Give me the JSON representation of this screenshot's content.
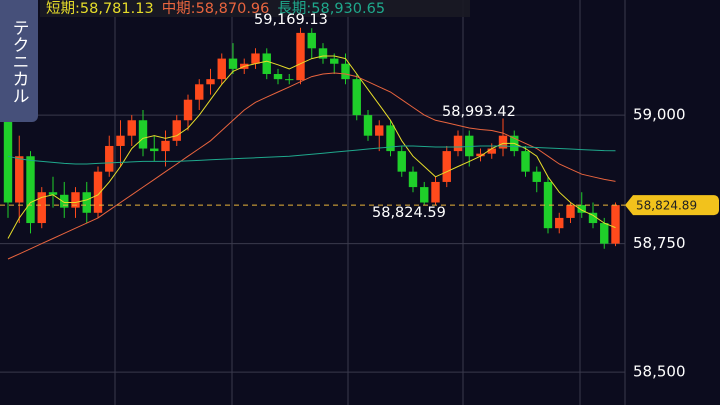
{
  "chart_data": {
    "type": "candlestick",
    "side_tab": "テクニカル",
    "ylim": [
      58436,
      59224
    ],
    "yticks": [
      {
        "value": 59000,
        "label": "59,000"
      },
      {
        "value": 58750,
        "label": "58,750"
      },
      {
        "value": 58500,
        "label": "58,500"
      }
    ],
    "grid": true,
    "up_color": "#ff4a1c",
    "down_color": "#1fcf2a",
    "current_price": {
      "value": 58824.89,
      "label": "58,824.89"
    },
    "annotations": [
      "59,169.13",
      "58,993.42",
      "58,824.59"
    ],
    "candles": {
      "open": [
        58990,
        58830,
        58920,
        58790,
        58850,
        58845,
        58820,
        58850,
        58810,
        58890,
        58940,
        58960,
        58990,
        58935,
        58930,
        58950,
        58990,
        59030,
        59060,
        59070,
        59110,
        59090,
        59100,
        59120,
        59080,
        59070,
        59068,
        59160,
        59130,
        59110,
        59100,
        59070,
        59000,
        58960,
        58980,
        58930,
        58890,
        58860,
        58830,
        58870,
        58930,
        58960,
        58920,
        58925,
        58935,
        58960,
        58930,
        58890,
        58870,
        58780,
        58800,
        58825,
        58810,
        58790,
        58750
      ],
      "high": [
        59005,
        58960,
        58930,
        58860,
        58880,
        58870,
        58860,
        58870,
        58900,
        58960,
        58990,
        59000,
        59010,
        58960,
        58970,
        59000,
        59040,
        59070,
        59090,
        59120,
        59140,
        59110,
        59130,
        59130,
        59090,
        59080,
        59170,
        59169.13,
        59140,
        59120,
        59120,
        59080,
        59010,
        58990,
        58990,
        58940,
        58900,
        58870,
        58880,
        58940,
        58970,
        58970,
        58935,
        58945,
        58993.42,
        58970,
        58940,
        58900,
        58880,
        58810,
        58830,
        58850,
        58830,
        58800,
        58830
      ],
      "low": [
        58800,
        58790,
        58770,
        58780,
        58820,
        58800,
        58800,
        58790,
        58800,
        58880,
        58900,
        58940,
        58920,
        58910,
        58900,
        58940,
        58970,
        59010,
        59040,
        59060,
        59080,
        59080,
        59090,
        59070,
        59060,
        59060,
        59060,
        59110,
        59100,
        59080,
        59060,
        58990,
        58950,
        58930,
        58920,
        58880,
        58850,
        58824.59,
        58825,
        58860,
        58920,
        58900,
        58910,
        58915,
        58920,
        58920,
        58880,
        58850,
        58770,
        58770,
        58790,
        58800,
        58780,
        58740,
        58745
      ],
      "close": [
        58830,
        58920,
        58790,
        58850,
        58845,
        58820,
        58850,
        58810,
        58890,
        58940,
        58960,
        58990,
        58935,
        58930,
        58950,
        58990,
        59030,
        59060,
        59070,
        59110,
        59090,
        59100,
        59120,
        59080,
        59070,
        59068,
        59160,
        59130,
        59110,
        59100,
        59070,
        59000,
        58960,
        58980,
        58930,
        58890,
        58860,
        58830,
        58870,
        58930,
        58960,
        58920,
        58925,
        58935,
        58960,
        58930,
        58890,
        58870,
        58780,
        58800,
        58825,
        58810,
        58790,
        58750,
        58824.89
      ]
    },
    "series": [
      {
        "name": "短期:",
        "color": "#e6dc2a",
        "last_label": "58,781.13",
        "values": [
          58760,
          58800,
          58830,
          58840,
          58845,
          58830,
          58830,
          58835,
          58845,
          58870,
          58900,
          58935,
          58955,
          58960,
          58955,
          58960,
          58975,
          59000,
          59030,
          59060,
          59085,
          59095,
          59100,
          59105,
          59098,
          59090,
          59100,
          59110,
          59115,
          59115,
          59110,
          59080,
          59050,
          59020,
          58990,
          58950,
          58920,
          58900,
          58880,
          58890,
          58900,
          58910,
          58920,
          58935,
          58945,
          58945,
          58935,
          58920,
          58880,
          58850,
          58830,
          58815,
          58805,
          58790,
          58781.13
        ]
      },
      {
        "name": "中期:",
        "color": "#e8643e",
        "last_label": "58,870.96",
        "values": [
          58720,
          58730,
          58740,
          58750,
          58760,
          58770,
          58780,
          58790,
          58800,
          58815,
          58830,
          58845,
          58860,
          58875,
          58890,
          58905,
          58920,
          58935,
          58950,
          58970,
          58990,
          59010,
          59025,
          59035,
          59045,
          59055,
          59065,
          59075,
          59080,
          59082,
          59080,
          59075,
          59065,
          59055,
          59045,
          59030,
          59015,
          59000,
          58990,
          58985,
          58980,
          58975,
          58972,
          58970,
          58965,
          58955,
          58945,
          58935,
          58920,
          58905,
          58895,
          58885,
          58880,
          58875,
          58870.96
        ]
      },
      {
        "name": "長期:",
        "color": "#1fa88c",
        "last_label": "58,930.65",
        "values": [
          58920,
          58915,
          58912,
          58910,
          58908,
          58906,
          58905,
          58905,
          58906,
          58907,
          58908,
          58909,
          58910,
          58910,
          58910,
          58910,
          58911,
          58912,
          58913,
          58914,
          58915,
          58916,
          58917,
          58918,
          58919,
          58920,
          58922,
          58924,
          58926,
          58928,
          58930,
          58932,
          58934,
          58936,
          58938,
          58940,
          58940,
          58939,
          58938,
          58938,
          58938,
          58939,
          58940,
          58940,
          58940,
          58939,
          58938,
          58937,
          58936,
          58935,
          58934,
          58933,
          58932,
          58931,
          58930.65
        ]
      }
    ]
  }
}
